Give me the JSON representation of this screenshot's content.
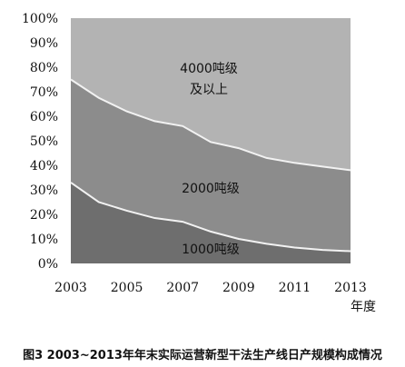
{
  "chart_data": {
    "type": "area",
    "stacked": true,
    "normalized_percent": true,
    "x": [
      2003,
      2004,
      2005,
      2006,
      2007,
      2008,
      2009,
      2010,
      2011,
      2012,
      2013
    ],
    "x_tick_labels": [
      "2003",
      "2005",
      "2007",
      "2009",
      "2011",
      "2013"
    ],
    "x_ticks": [
      2003,
      2005,
      2007,
      2009,
      2011,
      2013
    ],
    "y_tick_labels": [
      "0%",
      "10%",
      "20%",
      "30%",
      "40%",
      "50%",
      "60%",
      "70%",
      "80%",
      "90%",
      "100%"
    ],
    "ylim": [
      0,
      100
    ],
    "xlabel": "年度",
    "ylabel": "",
    "title": "图3 2003~2013年年末实际运营新型干法生产线日产规模构成情况",
    "grid": false,
    "series": [
      {
        "name": "1000吨级",
        "values": [
          33,
          25,
          21.5,
          18.5,
          17,
          13,
          10,
          8,
          6.5,
          5.5,
          5
        ],
        "color": "#6e6e6e"
      },
      {
        "name": "2000吨级",
        "values": [
          42,
          42.5,
          40.5,
          39.5,
          39,
          36.5,
          37,
          35,
          34.5,
          34,
          33
        ],
        "color": "#8c8c8c"
      },
      {
        "name": "4000吨级及以上",
        "values": [
          25,
          32.5,
          38,
          42,
          44,
          50.5,
          53,
          57,
          59,
          60.5,
          62
        ],
        "color": "#b3b3b3"
      }
    ],
    "region_labels": {
      "top_line1": "4000吨级",
      "top_line2": "及以上",
      "middle": "2000吨级",
      "bottom": "1000吨级"
    }
  }
}
